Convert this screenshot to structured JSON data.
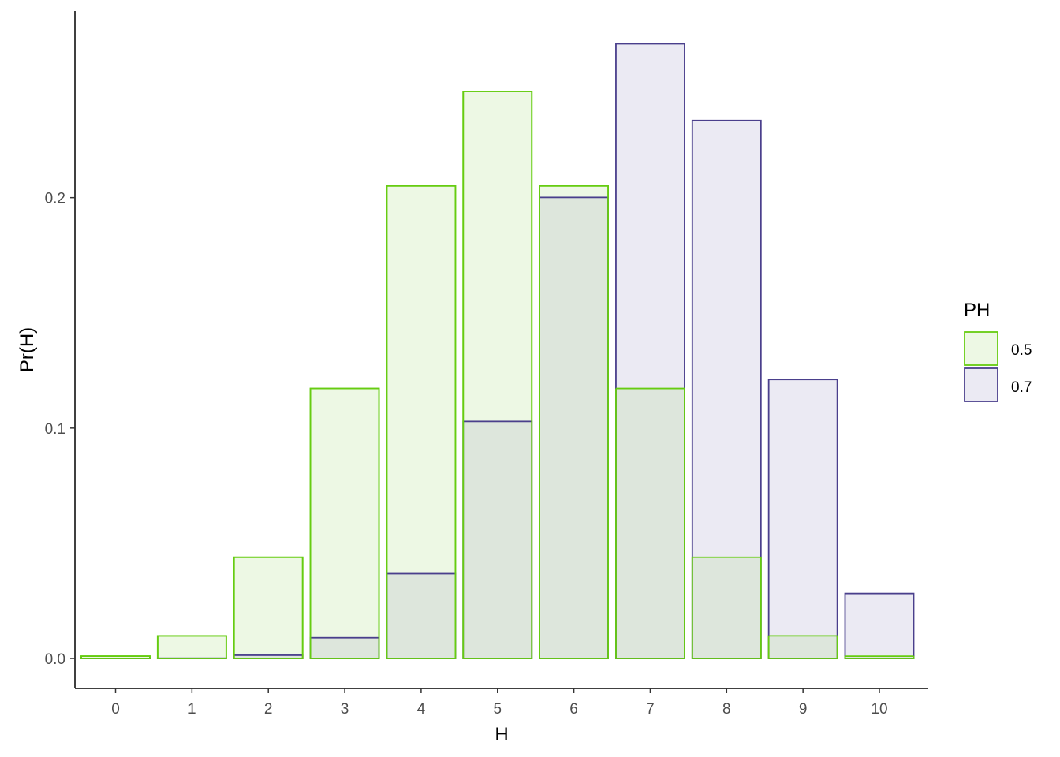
{
  "chart_data": {
    "type": "bar",
    "categories": [
      "0",
      "1",
      "2",
      "3",
      "4",
      "5",
      "6",
      "7",
      "8",
      "9",
      "10"
    ],
    "series": [
      {
        "name": "0.5",
        "values": [
          0.001,
          0.0098,
          0.0439,
          0.1172,
          0.2051,
          0.2461,
          0.2051,
          0.1172,
          0.0439,
          0.0098,
          0.001
        ],
        "fill": "#edf8e4",
        "stroke": "#66cc11"
      },
      {
        "name": "0.7",
        "values": [
          0.0,
          0.0001,
          0.0014,
          0.009,
          0.0368,
          0.1029,
          0.2001,
          0.2668,
          0.2335,
          0.1211,
          0.0282
        ],
        "fill": "#ebeaf3",
        "stroke": "#4a3f8c"
      }
    ],
    "overlap_fill": "#dde6dc",
    "xlabel": "H",
    "ylabel": "Pr(H)",
    "ylim": [
      -0.013,
      0.281
    ],
    "yticks": [
      0.0,
      0.1,
      0.2
    ],
    "ytick_labels": [
      "0.0",
      "0.1",
      "0.2"
    ],
    "legend_title": "PH",
    "legend_position": "right",
    "grid": false
  }
}
